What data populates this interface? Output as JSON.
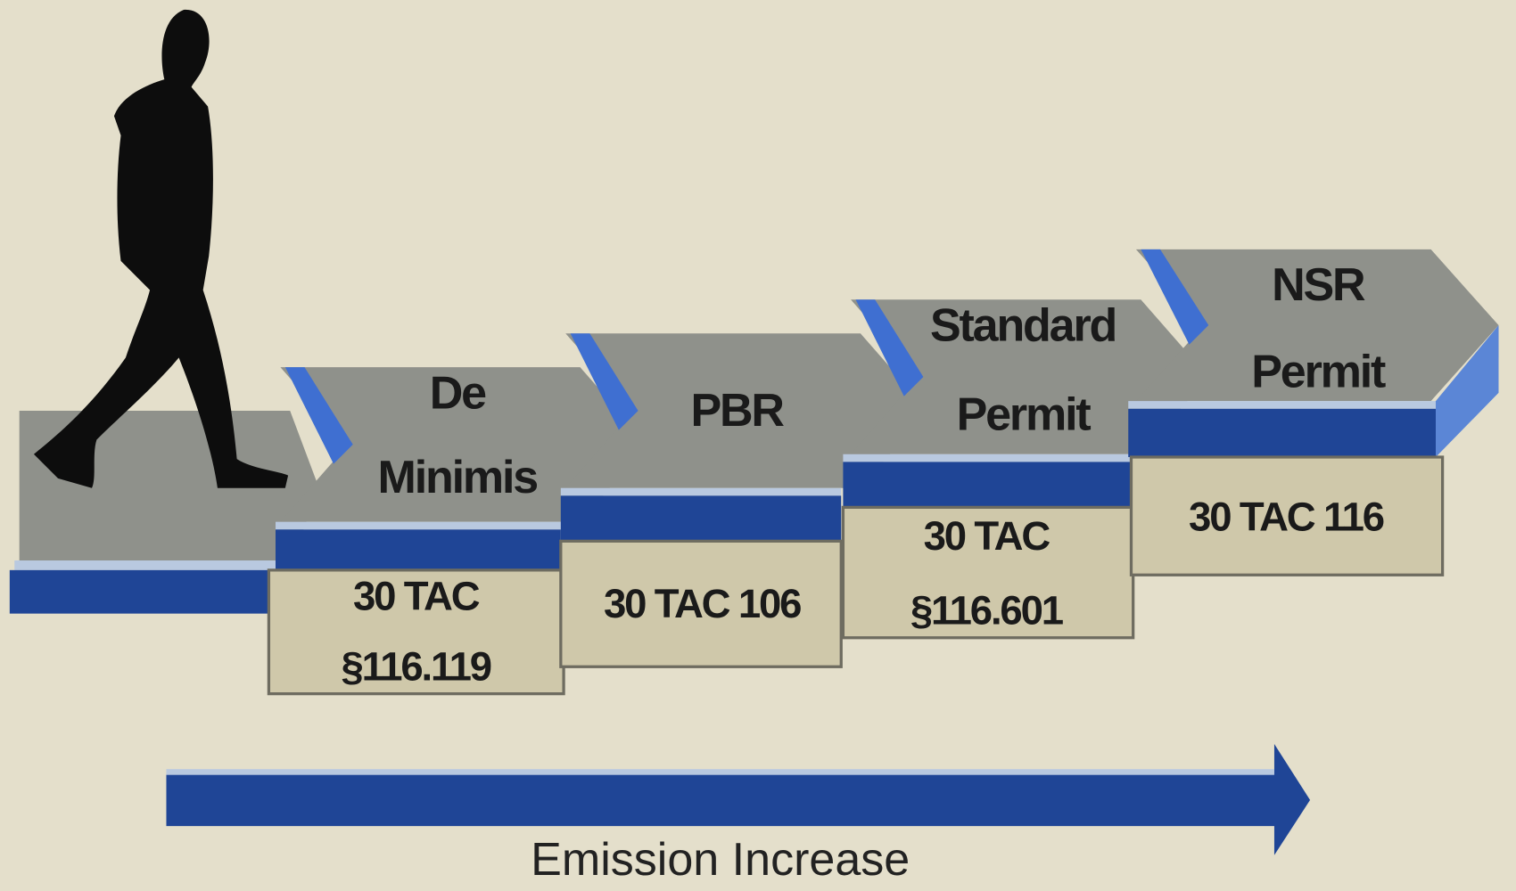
{
  "steps": [
    {
      "label": [
        "De",
        "Minimis"
      ],
      "rule": [
        "30 TAC",
        "§116.119"
      ]
    },
    {
      "label": [
        "PBR"
      ],
      "rule": [
        "30 TAC 106"
      ]
    },
    {
      "label": [
        "Standard",
        "Permit"
      ],
      "rule": [
        "30 TAC",
        "§116.601"
      ]
    },
    {
      "label": [
        "NSR",
        "Permit"
      ],
      "rule": [
        "30 TAC 116"
      ]
    }
  ],
  "arrow_label": "Emission Increase"
}
